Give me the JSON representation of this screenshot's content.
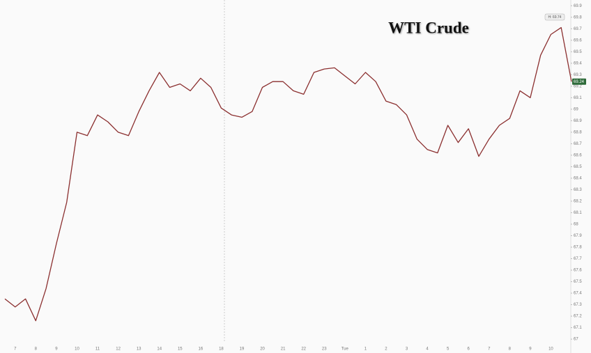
{
  "chart_data": {
    "type": "line",
    "title": "WTI Crude",
    "categories": [
      null,
      "7",
      null,
      "8",
      null,
      "9",
      null,
      "10",
      null,
      "11",
      null,
      "12",
      null,
      "13",
      null,
      "14",
      null,
      "15",
      null,
      "16",
      null,
      "18",
      null,
      "19",
      null,
      "20",
      null,
      "21",
      null,
      "22",
      null,
      "23",
      null,
      "Tue",
      null,
      "1",
      null,
      "2",
      null,
      "3",
      null,
      "4",
      null,
      "5",
      null,
      "6",
      null,
      "7",
      null,
      "8",
      null,
      "9",
      null,
      "10",
      null,
      null
    ],
    "series": [
      {
        "color": "#8b2f2f",
        "values": [
          67.35,
          67.28,
          67.35,
          67.16,
          67.44,
          67.83,
          68.19,
          68.8,
          68.77,
          68.95,
          68.89,
          68.8,
          68.77,
          68.98,
          69.16,
          69.32,
          69.19,
          69.22,
          69.16,
          69.27,
          69.19,
          69.01,
          68.95,
          68.93,
          68.98,
          69.19,
          69.24,
          69.24,
          69.16,
          69.13,
          69.32,
          69.35,
          69.36,
          69.29,
          69.22,
          69.32,
          69.24,
          69.07,
          69.04,
          68.95,
          68.74,
          68.65,
          68.62,
          68.86,
          68.71,
          68.83,
          68.59,
          68.74,
          68.86,
          68.92,
          69.16,
          69.1,
          69.47,
          69.65,
          69.71,
          69.24
        ]
      }
    ],
    "ylim": [
      66.94,
      69.95
    ],
    "yticks": [
      67,
      67.1,
      67.2,
      67.3,
      67.4,
      67.5,
      67.6,
      67.7,
      67.8,
      67.9,
      68,
      68.1,
      68.2,
      68.3,
      68.4,
      68.5,
      68.6,
      68.7,
      68.8,
      68.9,
      69,
      69.1,
      69.2,
      69.3,
      69.4,
      69.5,
      69.6,
      69.7,
      69.8,
      69.9
    ],
    "last_price": 69.24,
    "high_label": "H: 69.74",
    "grid": false
  }
}
